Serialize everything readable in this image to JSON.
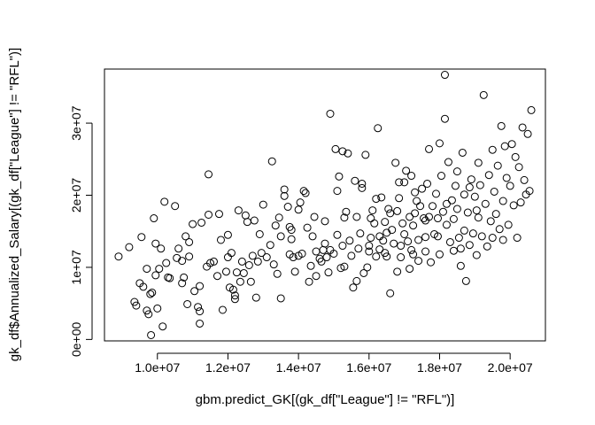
{
  "chart_data": {
    "type": "scatter",
    "title": "",
    "xlabel": "gbm.predict_GK[(gk_df[\"League\"] != \"RFL\")]",
    "ylabel": "gk_df$Annualized_Salary[(gk_df[\"League\"] != \"RFL\")]",
    "xlim": [
      8500000,
      21000000
    ],
    "ylim": [
      -200000,
      37500000
    ],
    "x_ticks": [
      10000000,
      12000000,
      14000000,
      16000000,
      18000000,
      20000000
    ],
    "x_tick_labels": [
      "1.0e+07",
      "1.2e+07",
      "1.4e+07",
      "1.6e+07",
      "1.8e+07",
      "2.0e+07"
    ],
    "y_ticks": [
      0,
      10000000,
      20000000,
      30000000
    ],
    "y_tick_labels": [
      "0e+00",
      "1e+07",
      "2e+07",
      "3e+07"
    ],
    "grid": false,
    "marker": "open-circle",
    "point_color": "#000000",
    "series": [
      {
        "points": [
          [
            8900000,
            11500000
          ],
          [
            9200000,
            12800000
          ],
          [
            9350000,
            5200000
          ],
          [
            9400000,
            4700000
          ],
          [
            9500000,
            7800000
          ],
          [
            9550000,
            14200000
          ],
          [
            9600000,
            7300000
          ],
          [
            9700000,
            4000000
          ],
          [
            9700000,
            9800000
          ],
          [
            9750000,
            3500000
          ],
          [
            9800000,
            6300000
          ],
          [
            9820000,
            600000
          ],
          [
            9850000,
            6500000
          ],
          [
            9900000,
            16800000
          ],
          [
            9950000,
            13300000
          ],
          [
            9950000,
            8900000
          ],
          [
            10000000,
            4300000
          ],
          [
            10050000,
            9800000
          ],
          [
            10100000,
            12600000
          ],
          [
            10150000,
            1800000
          ],
          [
            10200000,
            19100000
          ],
          [
            10250000,
            10600000
          ],
          [
            10300000,
            8600000
          ],
          [
            10350000,
            8500000
          ],
          [
            10500000,
            18500000
          ],
          [
            10550000,
            11300000
          ],
          [
            10600000,
            12600000
          ],
          [
            10700000,
            7800000
          ],
          [
            10700000,
            10900000
          ],
          [
            10750000,
            8600000
          ],
          [
            10800000,
            14300000
          ],
          [
            10850000,
            4900000
          ],
          [
            10900000,
            13500000
          ],
          [
            10900000,
            11500000
          ],
          [
            11000000,
            16000000
          ],
          [
            11050000,
            6700000
          ],
          [
            11150000,
            4500000
          ],
          [
            11200000,
            7400000
          ],
          [
            11200000,
            2200000
          ],
          [
            11200000,
            3900000
          ],
          [
            11250000,
            16200000
          ],
          [
            11400000,
            10100000
          ],
          [
            11450000,
            17300000
          ],
          [
            11450000,
            22900000
          ],
          [
            11500000,
            10600000
          ],
          [
            11600000,
            10800000
          ],
          [
            11700000,
            8800000
          ],
          [
            11750000,
            17400000
          ],
          [
            11800000,
            13800000
          ],
          [
            11850000,
            4100000
          ],
          [
            11950000,
            9400000
          ],
          [
            12000000,
            14500000
          ],
          [
            12000000,
            11400000
          ],
          [
            12050000,
            7200000
          ],
          [
            12100000,
            12000000
          ],
          [
            12150000,
            6900000
          ],
          [
            12200000,
            5600000
          ],
          [
            12200000,
            6100000
          ],
          [
            12250000,
            9300000
          ],
          [
            12300000,
            17900000
          ],
          [
            12350000,
            8000000
          ],
          [
            12400000,
            10800000
          ],
          [
            12450000,
            9200000
          ],
          [
            12500000,
            17200000
          ],
          [
            12550000,
            16300000
          ],
          [
            12600000,
            10300000
          ],
          [
            12650000,
            8000000
          ],
          [
            12700000,
            11600000
          ],
          [
            12750000,
            16500000
          ],
          [
            12800000,
            5800000
          ],
          [
            12850000,
            10800000
          ],
          [
            12900000,
            14600000
          ],
          [
            12950000,
            12000000
          ],
          [
            13000000,
            18700000
          ],
          [
            13100000,
            11400000
          ],
          [
            13200000,
            13100000
          ],
          [
            13250000,
            24700000
          ],
          [
            13300000,
            10400000
          ],
          [
            13350000,
            15800000
          ],
          [
            13400000,
            9100000
          ],
          [
            13450000,
            16900000
          ],
          [
            13500000,
            14300000
          ],
          [
            13500000,
            5700000
          ],
          [
            13600000,
            19900000
          ],
          [
            13600000,
            20800000
          ],
          [
            13700000,
            18400000
          ],
          [
            13750000,
            15600000
          ],
          [
            13750000,
            11800000
          ],
          [
            13800000,
            13900000
          ],
          [
            13800000,
            15200000
          ],
          [
            13850000,
            11400000
          ],
          [
            13900000,
            9400000
          ],
          [
            14000000,
            18000000
          ],
          [
            14000000,
            11600000
          ],
          [
            14050000,
            19000000
          ],
          [
            14100000,
            11900000
          ],
          [
            14150000,
            20600000
          ],
          [
            14200000,
            20300000
          ],
          [
            14250000,
            15500000
          ],
          [
            14300000,
            8000000
          ],
          [
            14350000,
            10200000
          ],
          [
            14400000,
            14300000
          ],
          [
            14450000,
            17000000
          ],
          [
            14500000,
            8800000
          ],
          [
            14500000,
            12200000
          ],
          [
            14600000,
            11200000
          ],
          [
            14650000,
            10800000
          ],
          [
            14700000,
            12400000
          ],
          [
            14750000,
            16400000
          ],
          [
            14800000,
            11400000
          ],
          [
            14850000,
            9300000
          ],
          [
            14900000,
            12400000
          ],
          [
            14900000,
            31300000
          ],
          [
            15000000,
            11900000
          ],
          [
            15050000,
            26400000
          ],
          [
            15100000,
            14500000
          ],
          [
            15100000,
            20600000
          ],
          [
            15150000,
            22600000
          ],
          [
            15200000,
            9900000
          ],
          [
            15250000,
            26100000
          ],
          [
            15300000,
            16900000
          ],
          [
            15300000,
            10100000
          ],
          [
            15350000,
            17700000
          ],
          [
            15400000,
            25800000
          ],
          [
            15450000,
            13700000
          ],
          [
            15500000,
            11600000
          ],
          [
            15550000,
            7200000
          ],
          [
            15600000,
            22000000
          ],
          [
            15650000,
            8100000
          ],
          [
            15700000,
            12600000
          ],
          [
            15750000,
            14700000
          ],
          [
            15800000,
            21000000
          ],
          [
            15800000,
            21600000
          ],
          [
            15850000,
            9200000
          ],
          [
            15900000,
            25600000
          ],
          [
            15950000,
            10000000
          ],
          [
            16000000,
            12200000
          ],
          [
            16000000,
            13000000
          ],
          [
            16050000,
            16800000
          ],
          [
            16100000,
            17900000
          ],
          [
            16150000,
            16100000
          ],
          [
            16200000,
            19500000
          ],
          [
            16200000,
            11500000
          ],
          [
            16250000,
            29300000
          ],
          [
            16300000,
            12500000
          ],
          [
            16300000,
            14300000
          ],
          [
            16350000,
            19700000
          ],
          [
            16400000,
            13700000
          ],
          [
            16450000,
            12000000
          ],
          [
            16500000,
            11500000
          ],
          [
            16500000,
            14800000
          ],
          [
            16550000,
            18100000
          ],
          [
            16600000,
            6400000
          ],
          [
            16650000,
            15200000
          ],
          [
            16700000,
            13300000
          ],
          [
            16750000,
            24500000
          ],
          [
            16800000,
            17800000
          ],
          [
            16800000,
            9400000
          ],
          [
            16850000,
            19600000
          ],
          [
            16900000,
            11400000
          ],
          [
            16900000,
            13000000
          ],
          [
            16950000,
            16100000
          ],
          [
            17000000,
            21800000
          ],
          [
            17000000,
            14600000
          ],
          [
            17050000,
            23400000
          ],
          [
            17100000,
            13600000
          ],
          [
            17150000,
            17000000
          ],
          [
            17200000,
            22700000
          ],
          [
            17200000,
            12400000
          ],
          [
            17250000,
            15800000
          ],
          [
            17300000,
            20400000
          ],
          [
            17300000,
            17500000
          ],
          [
            17350000,
            19200000
          ],
          [
            17400000,
            13800000
          ],
          [
            17400000,
            10900000
          ],
          [
            17450000,
            18500000
          ],
          [
            17500000,
            20900000
          ],
          [
            17550000,
            16800000
          ],
          [
            17600000,
            14200000
          ],
          [
            17600000,
            12200000
          ],
          [
            17650000,
            21600000
          ],
          [
            17700000,
            17000000
          ],
          [
            17700000,
            26400000
          ],
          [
            17750000,
            10700000
          ],
          [
            17800000,
            18500000
          ],
          [
            17850000,
            14600000
          ],
          [
            17900000,
            20200000
          ],
          [
            17950000,
            16800000
          ],
          [
            18000000,
            27200000
          ],
          [
            18000000,
            11800000
          ],
          [
            18050000,
            22700000
          ],
          [
            18100000,
            17700000
          ],
          [
            18150000,
            30600000
          ],
          [
            18150000,
            36700000
          ],
          [
            18200000,
            15900000
          ],
          [
            18250000,
            24600000
          ],
          [
            18300000,
            13500000
          ],
          [
            18350000,
            19300000
          ],
          [
            18400000,
            12300000
          ],
          [
            18400000,
            16700000
          ],
          [
            18450000,
            21300000
          ],
          [
            18500000,
            23300000
          ],
          [
            18500000,
            18100000
          ],
          [
            18550000,
            14100000
          ],
          [
            18600000,
            10200000
          ],
          [
            18650000,
            25900000
          ],
          [
            18700000,
            15100000
          ],
          [
            18700000,
            20100000
          ],
          [
            18750000,
            8100000
          ],
          [
            18800000,
            17600000
          ],
          [
            18850000,
            13100000
          ],
          [
            18900000,
            22200000
          ],
          [
            18950000,
            14700000
          ],
          [
            19000000,
            19800000
          ],
          [
            19050000,
            11700000
          ],
          [
            19100000,
            24500000
          ],
          [
            19100000,
            16900000
          ],
          [
            19150000,
            21400000
          ],
          [
            19200000,
            14300000
          ],
          [
            19250000,
            33900000
          ],
          [
            19300000,
            18800000
          ],
          [
            19350000,
            12900000
          ],
          [
            19400000,
            22800000
          ],
          [
            19450000,
            16400000
          ],
          [
            19500000,
            14100000
          ],
          [
            19500000,
            26300000
          ],
          [
            19550000,
            20500000
          ],
          [
            19600000,
            17400000
          ],
          [
            19650000,
            24100000
          ],
          [
            19700000,
            15300000
          ],
          [
            19750000,
            29600000
          ],
          [
            19800000,
            13800000
          ],
          [
            19800000,
            19200000
          ],
          [
            19850000,
            26800000
          ],
          [
            19900000,
            22400000
          ],
          [
            19950000,
            15900000
          ],
          [
            20000000,
            21300000
          ],
          [
            20050000,
            27100000
          ],
          [
            20100000,
            18600000
          ],
          [
            20150000,
            25300000
          ],
          [
            20200000,
            14100000
          ],
          [
            20250000,
            23900000
          ],
          [
            20300000,
            19000000
          ],
          [
            20350000,
            29400000
          ],
          [
            20400000,
            22100000
          ],
          [
            20450000,
            20100000
          ],
          [
            20500000,
            28500000
          ],
          [
            20550000,
            20600000
          ],
          [
            20600000,
            31800000
          ],
          [
            15650000,
            17000000
          ],
          [
            16050000,
            14100000
          ],
          [
            16600000,
            17500000
          ],
          [
            17150000,
            9800000
          ],
          [
            17600000,
            16500000
          ],
          [
            18200000,
            18800000
          ],
          [
            18600000,
            12600000
          ],
          [
            19050000,
            17900000
          ],
          [
            15250000,
            13000000
          ],
          [
            14750000,
            13300000
          ],
          [
            16850000,
            21800000
          ],
          [
            17950000,
            14300000
          ],
          [
            18850000,
            21100000
          ],
          [
            17250000,
            11800000
          ],
          [
            16450000,
            16300000
          ]
        ]
      }
    ]
  }
}
